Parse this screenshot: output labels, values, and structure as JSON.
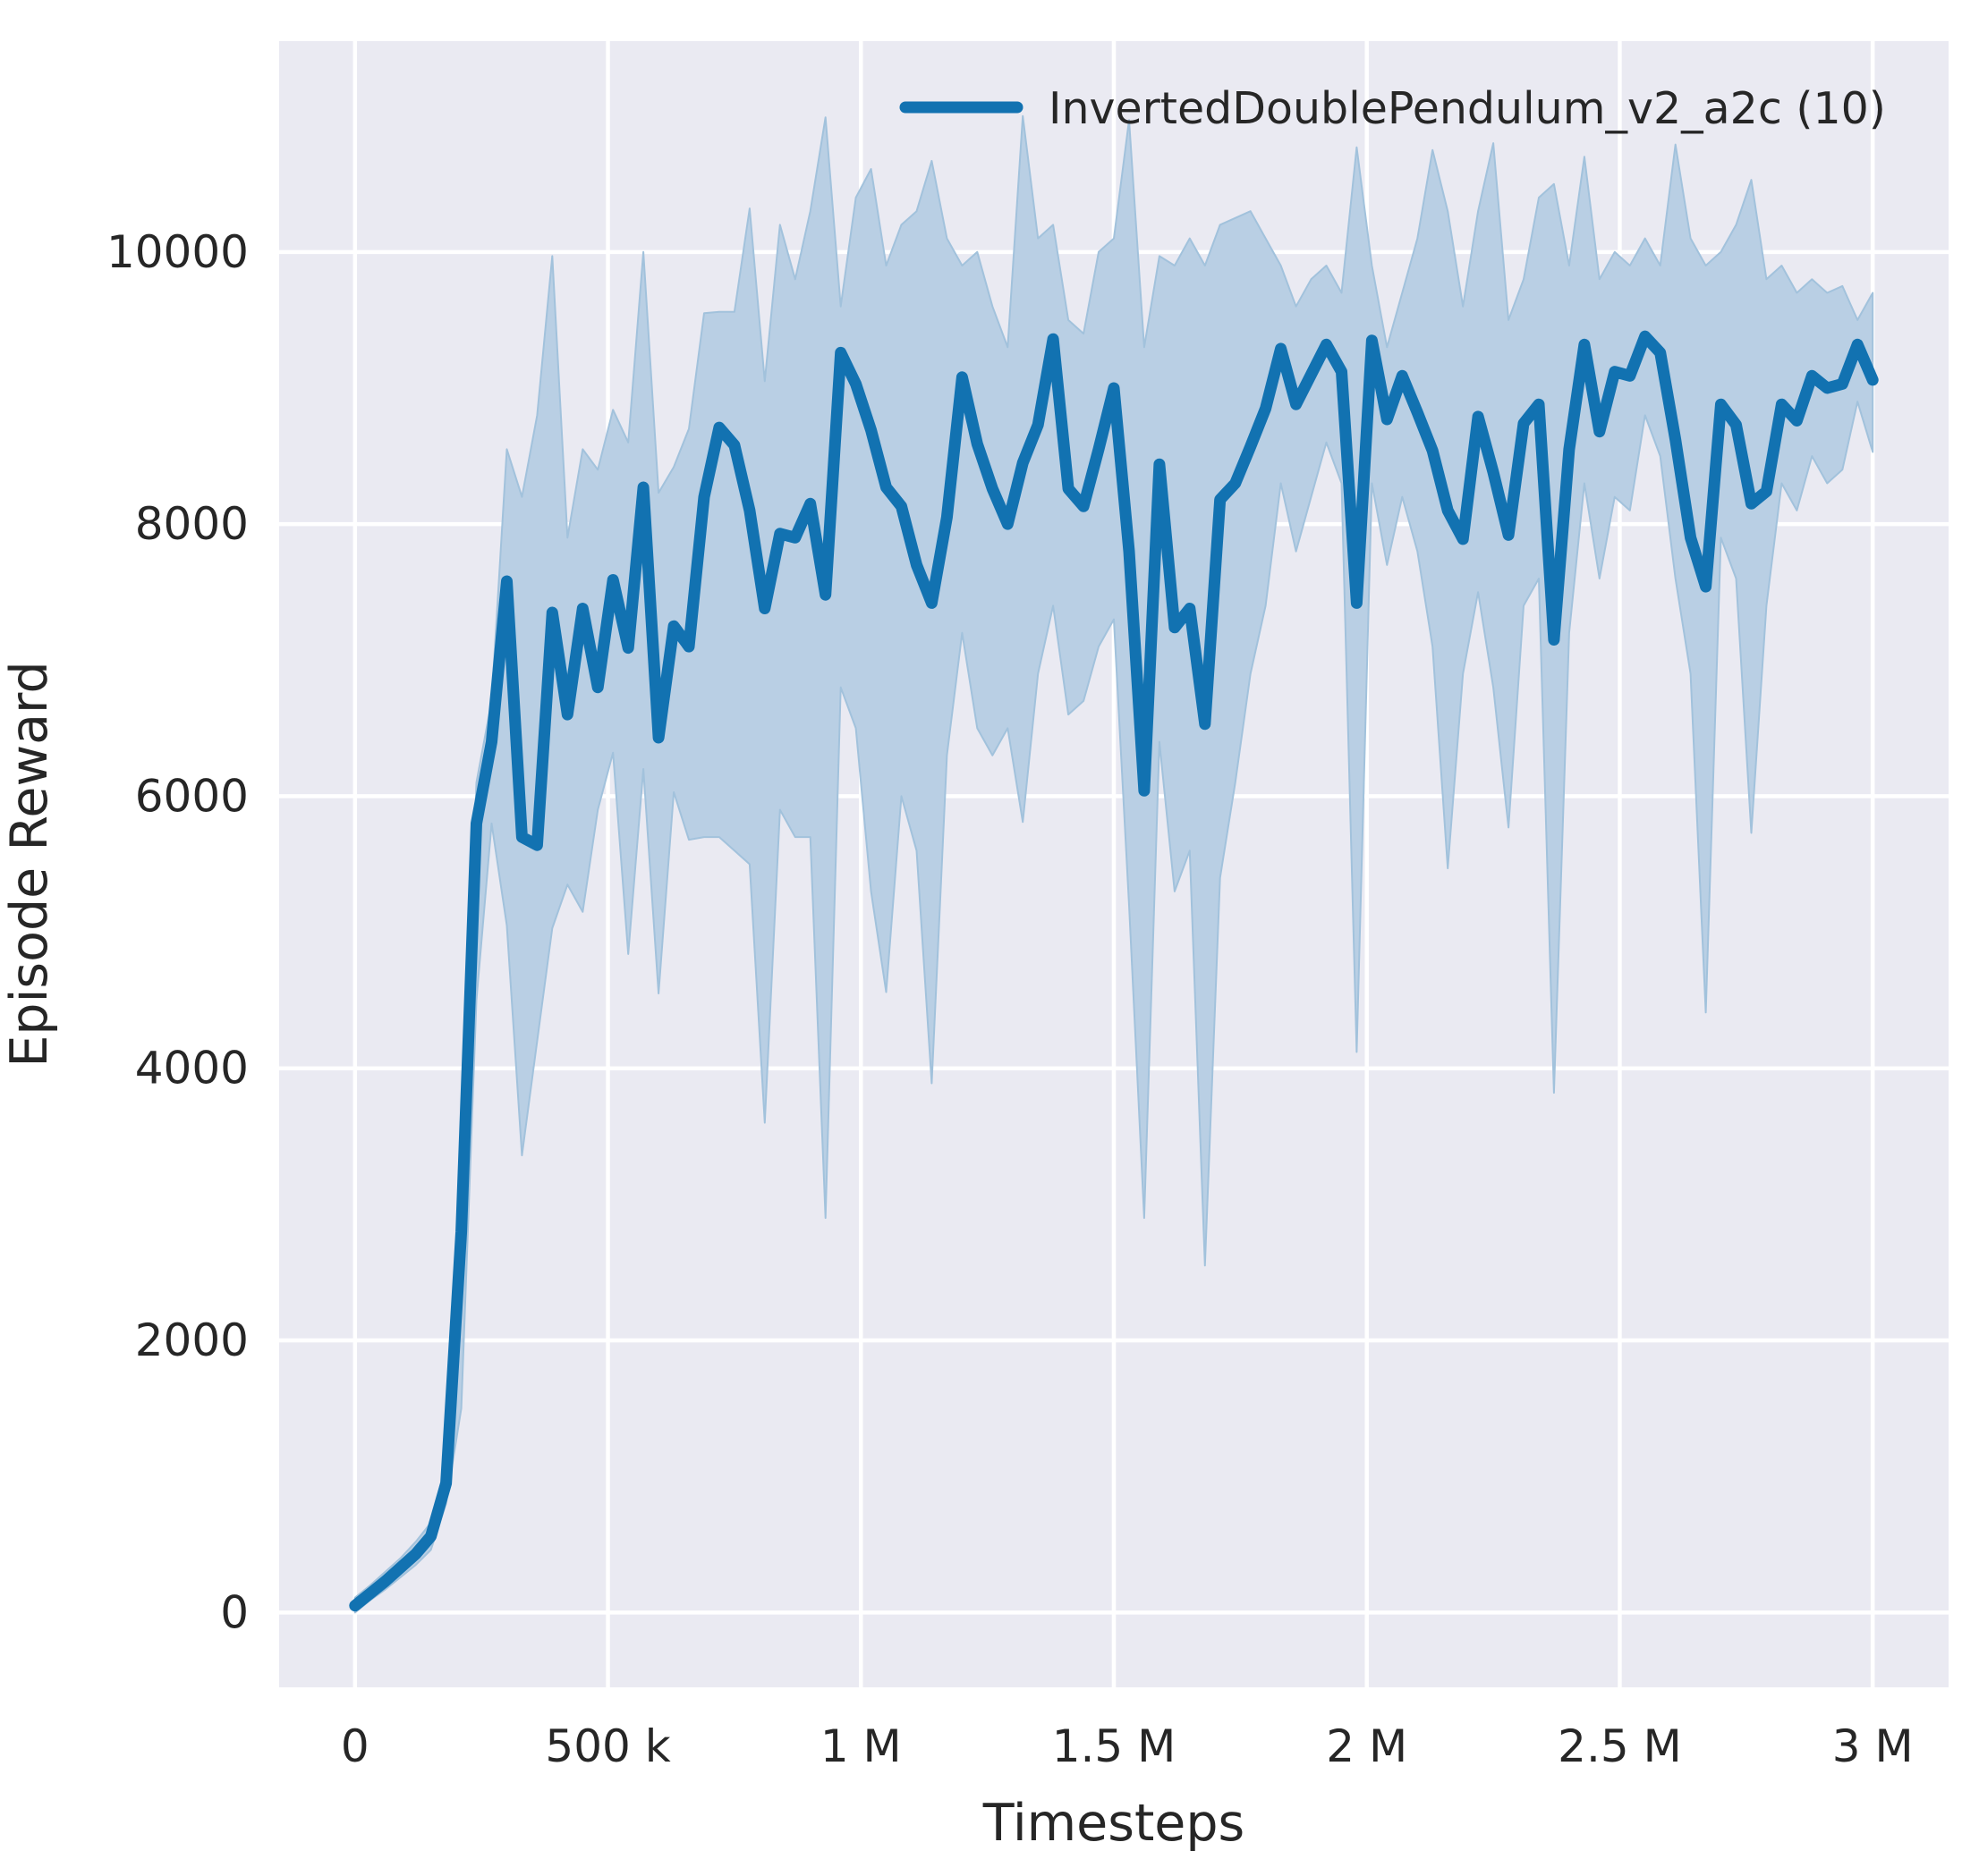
{
  "chart_data": {
    "type": "line",
    "title": "",
    "xlabel": "Timesteps",
    "ylabel": "Episode Reward",
    "grid": true,
    "style": "seaborn-darkgrid",
    "legend_position": "upper right",
    "xlim": [
      -150000,
      3150000
    ],
    "ylim": [
      -550,
      11550
    ],
    "x_ticks": [
      {
        "value": 0,
        "label": "0"
      },
      {
        "value": 500000,
        "label": "500 k"
      },
      {
        "value": 1000000,
        "label": "1 M"
      },
      {
        "value": 1500000,
        "label": "1.5 M"
      },
      {
        "value": 2000000,
        "label": "2 M"
      },
      {
        "value": 2500000,
        "label": "2.5 M"
      },
      {
        "value": 3000000,
        "label": "3 M"
      }
    ],
    "y_ticks": [
      {
        "value": 0,
        "label": "0"
      },
      {
        "value": 2000,
        "label": "2000"
      },
      {
        "value": 4000,
        "label": "4000"
      },
      {
        "value": 6000,
        "label": "6000"
      },
      {
        "value": 8000,
        "label": "8000"
      },
      {
        "value": 10000,
        "label": "10000"
      }
    ],
    "colors": {
      "line": "#1272b1",
      "band_fill": "#b9cfe4",
      "band_edge": "#a2c2dc",
      "plot_background": "#eaeaf2",
      "grid": "#ffffff",
      "text": "#262626",
      "figure_background": "#ffffff"
    },
    "series": [
      {
        "name": "InvertedDoublePendulum_v2_a2c (10)",
        "x_step": 30000,
        "x": [
          0,
          30000,
          60000,
          90000,
          120000,
          150000,
          180000,
          210000,
          240000,
          270000,
          300000,
          330000,
          360000,
          390000,
          420000,
          450000,
          480000,
          510000,
          540000,
          570000,
          600000,
          630000,
          660000,
          690000,
          720000,
          750000,
          780000,
          810000,
          840000,
          870000,
          900000,
          930000,
          960000,
          990000,
          1020000,
          1050000,
          1080000,
          1110000,
          1140000,
          1170000,
          1200000,
          1230000,
          1260000,
          1290000,
          1320000,
          1350000,
          1380000,
          1410000,
          1440000,
          1470000,
          1500000,
          1530000,
          1560000,
          1590000,
          1620000,
          1650000,
          1680000,
          1710000,
          1740000,
          1770000,
          1800000,
          1830000,
          1860000,
          1890000,
          1920000,
          1950000,
          1980000,
          2010000,
          2040000,
          2070000,
          2100000,
          2130000,
          2160000,
          2190000,
          2220000,
          2250000,
          2280000,
          2310000,
          2340000,
          2370000,
          2400000,
          2430000,
          2460000,
          2490000,
          2520000,
          2550000,
          2580000,
          2610000,
          2640000,
          2670000,
          2700000,
          2730000,
          2760000,
          2790000,
          2820000,
          2850000,
          2880000,
          2910000,
          2940000,
          2970000,
          3000000
        ],
        "mean": [
          50,
          140,
          230,
          330,
          430,
          560,
          950,
          2800,
          5800,
          6400,
          7580,
          5700,
          5640,
          7350,
          6600,
          7380,
          6800,
          7590,
          7090,
          8270,
          6430,
          7250,
          7100,
          8200,
          8710,
          8580,
          8100,
          7380,
          7930,
          7900,
          8150,
          7480,
          9260,
          9030,
          8690,
          8270,
          8130,
          7700,
          7420,
          8050,
          9080,
          8590,
          8260,
          8000,
          8450,
          8730,
          9360,
          8260,
          8130,
          8550,
          9000,
          7800,
          6040,
          8440,
          7240,
          7380,
          6530,
          8180,
          8300,
          8570,
          8850,
          9290,
          8880,
          9100,
          9320,
          9120,
          7420,
          9350,
          8770,
          9090,
          8820,
          8540,
          8100,
          7890,
          8790,
          8380,
          7920,
          8740,
          8880,
          7150,
          8550,
          9320,
          8680,
          9120,
          9090,
          9380,
          9260,
          8620,
          7900,
          7540,
          8880,
          8730,
          8150,
          8240,
          8880,
          8760,
          9090,
          9000,
          9030,
          9320,
          9060
        ],
        "lower": [
          0,
          90,
          170,
          260,
          350,
          460,
          800,
          1500,
          4500,
          5800,
          5050,
          3360,
          4200,
          5030,
          5350,
          5150,
          5900,
          6320,
          4840,
          6200,
          4550,
          6030,
          5680,
          5700,
          5700,
          5600,
          5500,
          3600,
          5900,
          5700,
          5700,
          2900,
          6800,
          6500,
          5300,
          4560,
          6000,
          5600,
          3890,
          6300,
          7200,
          6500,
          6300,
          6500,
          5810,
          6900,
          7400,
          6600,
          6700,
          7100,
          7300,
          5200,
          2900,
          6400,
          5300,
          5600,
          2550,
          5400,
          6100,
          6900,
          7400,
          8300,
          7800,
          8200,
          8600,
          8300,
          4120,
          8300,
          7700,
          8200,
          7800,
          7100,
          5470,
          6900,
          7500,
          6800,
          5770,
          7400,
          7600,
          3820,
          7200,
          8300,
          7600,
          8200,
          8100,
          8800,
          8500,
          7600,
          6900,
          4410,
          7900,
          7600,
          5730,
          7400,
          8300,
          8100,
          8500,
          8300,
          8400,
          8900,
          8530
        ],
        "upper": [
          110,
          200,
          300,
          400,
          520,
          660,
          1100,
          3100,
          6100,
          6700,
          8550,
          8200,
          8800,
          9970,
          7900,
          8550,
          8400,
          8840,
          8600,
          10000,
          8230,
          8420,
          8700,
          9550,
          9560,
          9560,
          10320,
          9050,
          10200,
          9800,
          10300,
          10990,
          9600,
          10400,
          10610,
          9900,
          10200,
          10300,
          10670,
          10100,
          9900,
          10000,
          9600,
          9300,
          11000,
          10100,
          10200,
          9500,
          9400,
          10000,
          10100,
          10970,
          9300,
          9970,
          9900,
          10100,
          9900,
          10200,
          10250,
          10300,
          10100,
          9900,
          9600,
          9800,
          9900,
          9700,
          10770,
          9900,
          9300,
          9700,
          10100,
          10750,
          10300,
          9600,
          10300,
          10800,
          9500,
          9800,
          10400,
          10500,
          9900,
          10700,
          9800,
          10000,
          9900,
          10100,
          9900,
          10790,
          10100,
          9900,
          10000,
          10200,
          10530,
          9800,
          9900,
          9700,
          9800,
          9700,
          9750,
          9500,
          9700
        ]
      }
    ]
  }
}
